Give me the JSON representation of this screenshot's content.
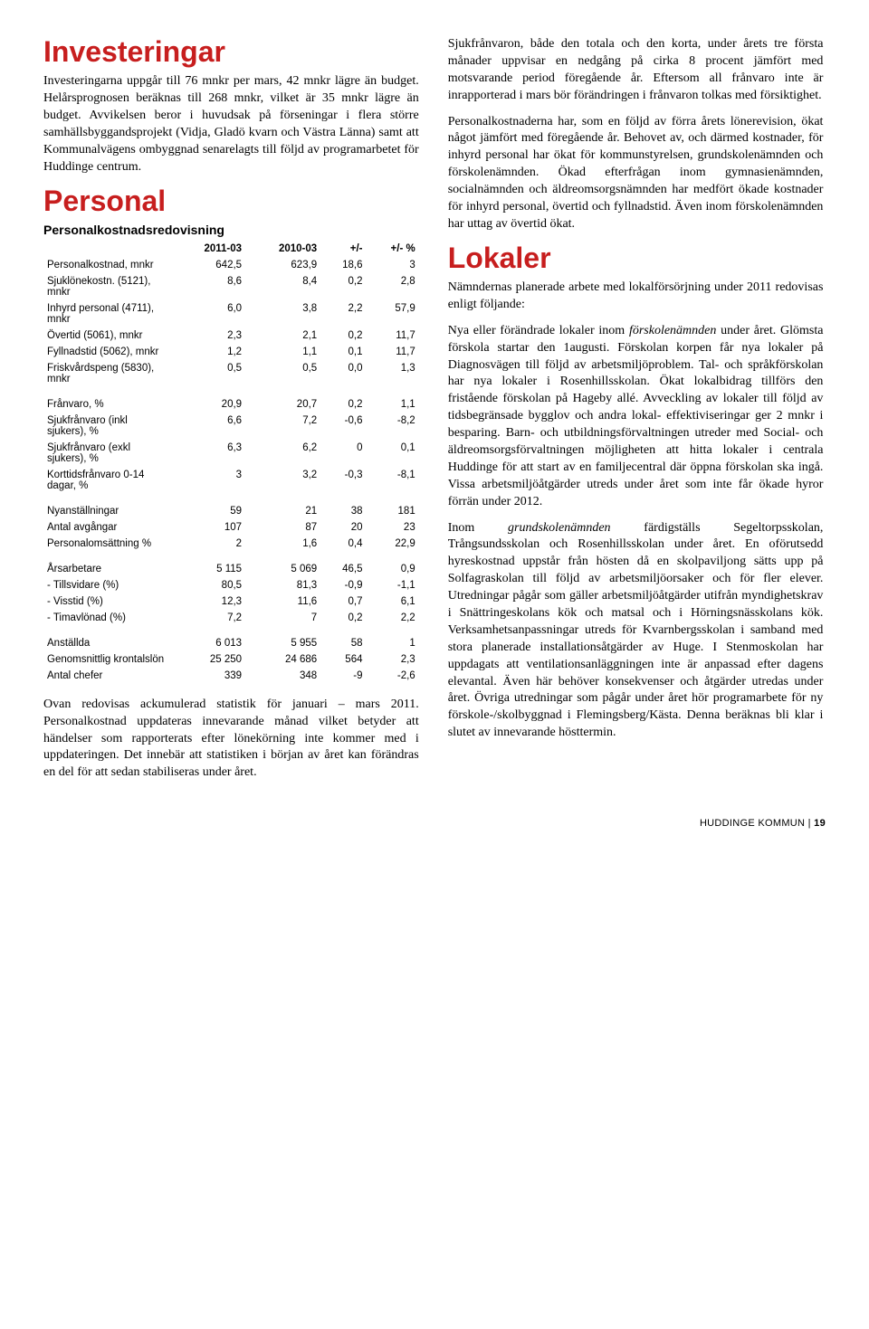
{
  "left": {
    "h_investeringar": "Investeringar",
    "p_investeringar": "Investeringarna uppgår till 76 mnkr per mars, 42 mnkr lägre än budget. Helårsprognosen beräknas till 268 mnkr, vilket är 35 mnkr lägre än budget. Avvikelsen beror i huvudsak på förseningar i flera större samhällsbyggandsprojekt (Vidja, Gladö kvarn och Västra Länna) samt att Kommunalvägens ombyggnad senarelagts till följd av programarbetet för Huddinge centrum.",
    "h_personal": "Personal",
    "subhead_personal": "Personalkostnadsredovisning",
    "table": {
      "columns": [
        "",
        "2011-03",
        "2010-03",
        "+/-",
        "+/- %"
      ],
      "rows": [
        [
          "Personalkostnad, mnkr",
          "642,5",
          "623,9",
          "18,6",
          "3"
        ],
        [
          "Sjuklönekostn. (5121), mnkr",
          "8,6",
          "8,4",
          "0,2",
          "2,8"
        ],
        [
          "Inhyrd personal (4711), mnkr",
          "6,0",
          "3,8",
          "2,2",
          "57,9"
        ],
        [
          "Övertid (5061), mnkr",
          "2,3",
          "2,1",
          "0,2",
          "11,7"
        ],
        [
          "Fyllnadstid (5062), mnkr",
          "1,2",
          "1,1",
          "0,1",
          "11,7"
        ],
        [
          "Friskvårdspeng (5830), mnkr",
          "0,5",
          "0,5",
          "0,0",
          "1,3"
        ]
      ],
      "rows2": [
        [
          "Frånvaro, %",
          "20,9",
          "20,7",
          "0,2",
          "1,1"
        ],
        [
          "Sjukfrånvaro (inkl sjukers), %",
          "6,6",
          "7,2",
          "-0,6",
          "-8,2"
        ],
        [
          "Sjukfrånvaro (exkl sjukers), %",
          "6,3",
          "6,2",
          "0",
          "0,1"
        ],
        [
          "Korttidsfrånvaro 0-14 dagar, %",
          "3",
          "3,2",
          "-0,3",
          "-8,1"
        ]
      ],
      "rows3": [
        [
          "Nyanställningar",
          "59",
          "21",
          "38",
          "181"
        ],
        [
          "Antal avgångar",
          "107",
          "87",
          "20",
          "23"
        ],
        [
          "Personalomsättning %",
          "2",
          "1,6",
          "0,4",
          "22,9"
        ]
      ],
      "rows4": [
        [
          "Årsarbetare",
          "5 115",
          "5 069",
          "46,5",
          "0,9"
        ],
        [
          "- Tillsvidare (%)",
          "80,5",
          "81,3",
          "-0,9",
          "-1,1"
        ],
        [
          "- Visstid (%)",
          "12,3",
          "11,6",
          "0,7",
          "6,1"
        ],
        [
          "- Timavlönad (%)",
          "7,2",
          "7",
          "0,2",
          "2,2"
        ]
      ],
      "rows5": [
        [
          "Anställda",
          "6 013",
          "5 955",
          "58",
          "1"
        ],
        [
          "Genomsnittlig krontalslön",
          "25 250",
          "24 686",
          "564",
          "2,3"
        ],
        [
          "Antal chefer",
          "339",
          "348",
          "-9",
          "-2,6"
        ]
      ]
    },
    "p_after_table": "Ovan redovisas ackumulerad statistik för januari – mars 2011. Personalkostnad uppdateras innevarande månad vilket betyder att händelser som rapporterats efter lönekörning inte kommer med i uppdateringen. Det innebär att statistiken i början av året kan förändras en del för att sedan stabiliseras under året."
  },
  "right": {
    "p1": "Sjukfrånvaron, både den totala och den korta, under årets tre första månader uppvisar en nedgång på cirka 8 procent jämfört med motsvarande period föregående år. Eftersom all frånvaro inte är inrapporterad i mars bör förändringen i frånvaron tolkas med försiktighet.",
    "p2": "Personalkostnaderna har, som en följd av förra årets lönerevision, ökat något jämfört med föregående år. Behovet av, och därmed kostnader, för inhyrd personal har ökat för kommunstyrelsen, grundskolenämnden och förskolenämnden. Ökad efterfrågan inom gymnasienämnden, socialnämnden och äldreomsorgsnämnden har medfört ökade kostnader för inhyrd personal, övertid och fyllnadstid. Även inom förskolenämnden har uttag av övertid ökat.",
    "h_lokaler": "Lokaler",
    "p3": "Nämndernas planerade arbete med lokalförsörjning under 2011 redovisas enligt följande:",
    "p4_pre": "Nya eller förändrade lokaler inom ",
    "p4_em": "förskolenämnden",
    "p4_post": " under året. Glömsta förskola startar den 1augusti. Förskolan korpen får nya lokaler på Diagnosvägen till följd av arbetsmiljöproblem. Tal- och språkförskolan har nya lokaler i Rosenhillsskolan. Ökat lokalbidrag tillförs den fristående förskolan på Hageby allé. Avveckling av lokaler till följd av tidsbegränsade bygglov och andra lokal- effektiviseringar ger 2 mnkr i besparing. Barn- och utbildningsförvaltningen utreder med Social- och äldreomsorgsförvaltningen möjligheten att hitta lokaler i centrala Huddinge för att start av en familjecentral där öppna förskolan ska ingå. Vissa arbetsmiljöåtgärder utreds under året som inte får ökade hyror förrän under 2012.",
    "p5_pre": "Inom ",
    "p5_em": "grundskolenämnden",
    "p5_post": " färdigställs Segeltorpsskolan, Trångsundsskolan och Rosenhillsskolan under året. En oförutsedd hyreskostnad uppstår från hösten då en skolpaviljong sätts upp på Solfagraskolan till följd av arbetsmiljöorsaker och för fler elever. Utredningar pågår som gäller arbetsmiljöåtgärder utifrån myndighetskrav i Snättringeskolans kök och matsal och i Hörningsnässkolans kök. Verksamhetsanpassningar utreds för Kvarnbergsskolan i samband med stora planerade installationsåtgärder av Huge. I Stenmoskolan har uppdagats att ventilationsanläggningen inte är anpassad efter dagens elevantal. Även här behöver konsekvenser och åtgärder utredas under året. Övriga utredningar som pågår under året hör programarbete för ny förskole-/skolbyggnad i Flemingsberg/Kästa. Denna beräknas bli klar i slutet av innevarande hösttermin."
  },
  "footer": {
    "brand": "HUDDINGE KOMMUN",
    "sep": " | ",
    "page": "19"
  }
}
